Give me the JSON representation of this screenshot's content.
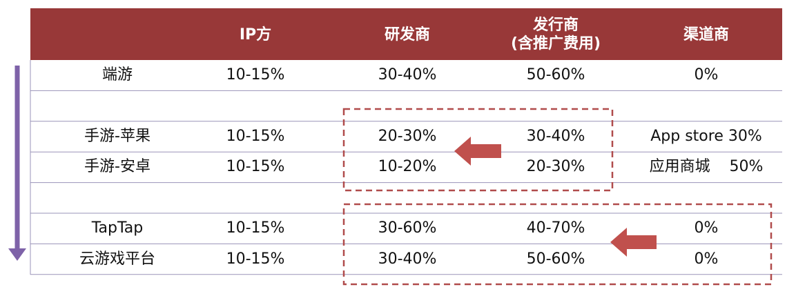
{
  "table": {
    "header": [
      "IP方",
      "研发商",
      "发行商\n(含推广费用)",
      "渠道商"
    ],
    "rows": [
      [
        "端游",
        "10-15%",
        "30-40%",
        "50-60%",
        "0%"
      ],
      [],
      [
        "手游-苹果",
        "10-15%",
        "20-30%",
        "30-40%",
        "App store 30%"
      ],
      [
        "手游-安卓",
        "10-15%",
        "10-20%",
        "20-30%",
        "应用商城    50%"
      ],
      [],
      [
        "TapTap",
        "10-15%",
        "30-60%",
        "40-70%",
        "0%"
      ],
      [
        "云游戏平台",
        "10-15%",
        "30-40%",
        "50-60%",
        "0%"
      ]
    ]
  }
}
